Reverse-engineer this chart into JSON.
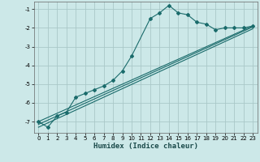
{
  "xlabel": "Humidex (Indice chaleur)",
  "ylabel": "",
  "bg_color": "#cce8e8",
  "grid_color": "#aac8c8",
  "line_color": "#1a6b6b",
  "xlim": [
    -0.5,
    23.5
  ],
  "ylim": [
    -7.6,
    -0.6
  ],
  "yticks": [
    -7,
    -6,
    -5,
    -4,
    -3,
    -2,
    -1
  ],
  "xticks": [
    0,
    1,
    2,
    3,
    4,
    5,
    6,
    7,
    8,
    9,
    10,
    11,
    12,
    13,
    14,
    15,
    16,
    17,
    18,
    19,
    20,
    21,
    22,
    23
  ],
  "line1_x": [
    0,
    1,
    2,
    3,
    4,
    5,
    6,
    7,
    8,
    9,
    10,
    12,
    13,
    14,
    15,
    16,
    17,
    18,
    19,
    20,
    21,
    22,
    23
  ],
  "line1_y": [
    -7.0,
    -7.3,
    -6.7,
    -6.5,
    -5.7,
    -5.5,
    -5.3,
    -5.1,
    -4.8,
    -4.3,
    -3.5,
    -1.5,
    -1.2,
    -0.8,
    -1.2,
    -1.3,
    -1.7,
    -1.8,
    -2.1,
    -2.0,
    -2.0,
    -2.0,
    -1.9
  ],
  "line2_x": [
    0,
    23
  ],
  "line2_y": [
    -7.0,
    -1.9
  ],
  "line3_x": [
    0,
    23
  ],
  "line3_y": [
    -7.15,
    -1.95
  ],
  "line4_x": [
    0,
    23
  ],
  "line4_y": [
    -7.3,
    -2.05
  ]
}
